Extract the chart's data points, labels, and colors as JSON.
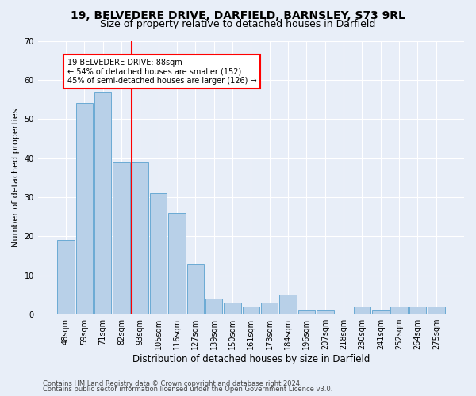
{
  "title1": "19, BELVEDERE DRIVE, DARFIELD, BARNSLEY, S73 9RL",
  "title2": "Size of property relative to detached houses in Darfield",
  "xlabel": "Distribution of detached houses by size in Darfield",
  "ylabel": "Number of detached properties",
  "categories": [
    "48sqm",
    "59sqm",
    "71sqm",
    "82sqm",
    "93sqm",
    "105sqm",
    "116sqm",
    "127sqm",
    "139sqm",
    "150sqm",
    "161sqm",
    "173sqm",
    "184sqm",
    "196sqm",
    "207sqm",
    "218sqm",
    "230sqm",
    "241sqm",
    "252sqm",
    "264sqm",
    "275sqm"
  ],
  "values": [
    19,
    54,
    57,
    39,
    39,
    31,
    26,
    13,
    4,
    3,
    2,
    3,
    5,
    1,
    1,
    0,
    2,
    1,
    2,
    2,
    2
  ],
  "bar_color": "#b8d0e8",
  "bar_edge_color": "#6aaad4",
  "annotation_title": "19 BELVEDERE DRIVE: 88sqm",
  "annotation_line1": "← 54% of detached houses are smaller (152)",
  "annotation_line2": "45% of semi-detached houses are larger (126) →",
  "ylim": [
    0,
    70
  ],
  "yticks": [
    0,
    10,
    20,
    30,
    40,
    50,
    60,
    70
  ],
  "footer1": "Contains HM Land Registry data © Crown copyright and database right 2024.",
  "footer2": "Contains public sector information licensed under the Open Government Licence v3.0.",
  "bg_color": "#e8eef8",
  "grid_color": "#ffffff",
  "title1_fontsize": 10,
  "title2_fontsize": 9,
  "xlabel_fontsize": 8.5,
  "ylabel_fontsize": 8,
  "tick_fontsize": 7,
  "footer_fontsize": 6
}
